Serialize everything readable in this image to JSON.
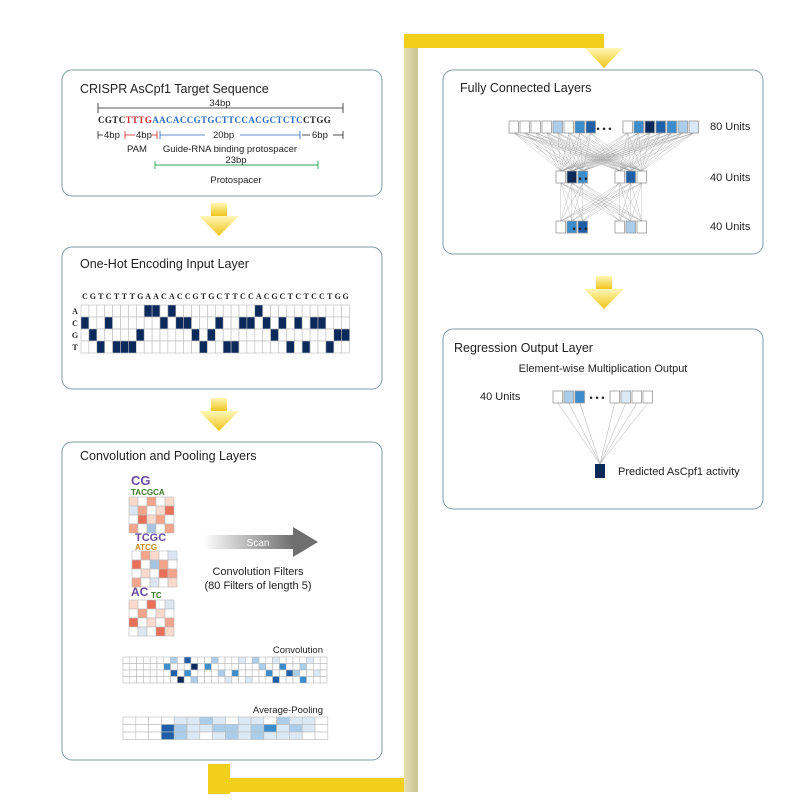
{
  "colors": {
    "navy": "#0b2a5c",
    "blue_dark": "#1f5fa8",
    "blue_mid": "#3b8dcc",
    "blue_light": "#a9cdea",
    "blue_pale": "#dbe9f6",
    "pam_red": "#d62a2a",
    "guide_blue": "#2a6cc2",
    "proto_green": "#2aa35a",
    "arrow_yellow": "#f2cf1a",
    "connector": "#d4cfa3"
  },
  "target_panel": {
    "title": "CRISPR AsCpf1 Target Sequence",
    "total_len": "34bp",
    "seq_prefix": "CGTC",
    "seq_pam": "TTTG",
    "seq_guide": "AACACCGTGCTTCCACGCTCTC",
    "seq_suffix": "CTGG",
    "seg_a": "4bp",
    "seg_b": "4bp",
    "seg_c": "20bp",
    "seg_d": "6bp",
    "pam_label": "PAM",
    "guide_label": "Guide-RNA binding protospacer",
    "proto_len": "23bp",
    "proto_label": "Protospacer"
  },
  "onehot_panel": {
    "title": "One-Hot Encoding Input Layer",
    "sequence": "CGTCTTTGAACACCGTGCTTCCACGCTCTCCTGG",
    "rows": [
      "A",
      "C",
      "G",
      "T"
    ]
  },
  "conv_panel": {
    "title": "Convolution and Pooling Layers",
    "scan_label": "Scan",
    "filters_line1": "Convolution Filters",
    "filters_line2": "(80 Filters of length 5)",
    "logo1": "CG",
    "logo1b": "TACGCA",
    "logo2": "TCGC",
    "logo2b": "ATCG",
    "logo3": "AC",
    "logo3b": "TC",
    "conv_label": "Convolution",
    "pool_label": "Average-Pooling"
  },
  "fc_panel": {
    "title": "Fully Connected Layers",
    "units1": "80 Units",
    "units2": "40 Units",
    "units3": "40 Units",
    "layer1": [
      0,
      0,
      0,
      0,
      2,
      0,
      3,
      4,
      0,
      3,
      5,
      4,
      3,
      2,
      1
    ],
    "layer2": [
      0,
      5,
      3,
      0,
      4,
      0
    ],
    "layer3": [
      0,
      3,
      4,
      0,
      2,
      0
    ]
  },
  "reg_panel": {
    "title": "Regression Output Layer",
    "subtitle": "Element-wise Multiplication Output",
    "units": "40 Units",
    "layer": [
      0,
      2,
      3,
      0,
      1,
      0,
      0
    ],
    "output_label": "Predicted AsCpf1 activity"
  },
  "dots": "• • •"
}
